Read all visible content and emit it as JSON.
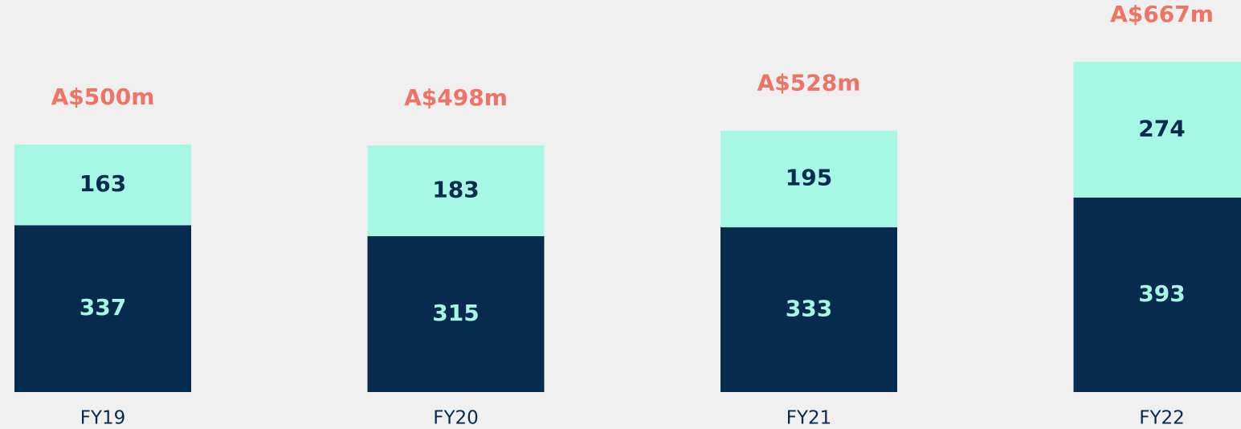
{
  "chart_data": {
    "type": "stacked_bar",
    "categories": [
      "FY19",
      "FY20",
      "FY21",
      "FY22"
    ],
    "series": [
      {
        "color": "#072b4f",
        "values": [
          337,
          315,
          333,
          393
        ]
      },
      {
        "color": "#a6f7e4",
        "values": [
          163,
          183,
          195,
          274
        ]
      }
    ],
    "total_labels": [
      "A$500m",
      "A$498m",
      "A$528m",
      "A$667m"
    ]
  }
}
